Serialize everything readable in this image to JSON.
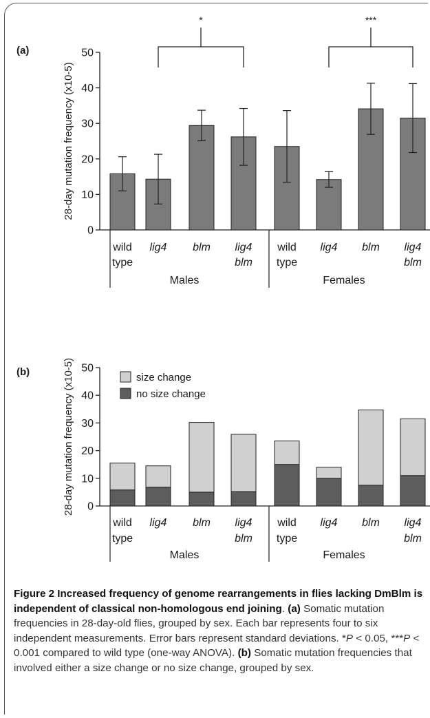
{
  "chart_data": [
    {
      "type": "bar",
      "panel_label": "(a)",
      "ylabel": "28-day mutation frequency (x10-5)",
      "ylim": [
        0,
        50
      ],
      "yticks": [
        0,
        10,
        20,
        30,
        40,
        50
      ],
      "categories": [
        {
          "line1": "wild",
          "line2": "type",
          "italic": false
        },
        {
          "line1": "lig4",
          "line2": "",
          "italic": true
        },
        {
          "line1": "blm",
          "line2": "",
          "italic": true
        },
        {
          "line1": "lig4",
          "line2": "blm",
          "italic": true
        },
        {
          "line1": "wild",
          "line2": "type",
          "italic": false
        },
        {
          "line1": "lig4",
          "line2": "",
          "italic": true
        },
        {
          "line1": "blm",
          "line2": "",
          "italic": true
        },
        {
          "line1": "lig4",
          "line2": "blm",
          "italic": true
        }
      ],
      "groups": [
        "Males",
        "Females"
      ],
      "values": [
        15.8,
        14.3,
        29.4,
        26.2,
        23.5,
        14.2,
        34.1,
        31.5
      ],
      "errors": [
        4.8,
        7.0,
        4.3,
        8.0,
        10.1,
        2.2,
        7.2,
        9.7
      ],
      "significance": [
        {
          "between": [
            1,
            3
          ],
          "label": "*"
        },
        {
          "between": [
            5,
            7
          ],
          "label": "***"
        }
      ],
      "color": "#7b7b7b"
    },
    {
      "type": "bar",
      "stacked": true,
      "panel_label": "(b)",
      "ylabel": "28-day mutation frequency (x10-5)",
      "ylim": [
        0,
        50
      ],
      "yticks": [
        0,
        10,
        20,
        30,
        40,
        50
      ],
      "groups": [
        "Males",
        "Females"
      ],
      "series": [
        {
          "name": "no size change",
          "color": "#5d5d5d",
          "values": [
            5.8,
            6.8,
            5.0,
            5.2,
            15.0,
            10.0,
            7.5,
            11.0
          ]
        },
        {
          "name": "size change",
          "color": "#d0d0d0",
          "values": [
            9.7,
            7.7,
            25.2,
            20.7,
            8.5,
            4.0,
            27.2,
            20.5
          ]
        }
      ],
      "legend": "top-left"
    }
  ],
  "caption": {
    "bold_title": "Figure 2 Increased frequency of genome rearrangements in flies lacking DmBlm is independent of classical non-homologous end joining",
    "part_a_label": "(a)",
    "part_a_text": " Somatic mutation frequencies in 28-day-old flies, grouped by sex. Each bar represents four to six independent measurements. Error bars represent standard deviations. *",
    "p1": "P",
    "t2": " < 0.05, ***",
    "p2": "P",
    "t3": " < 0.001 compared to wild type (one-way ANOVA). ",
    "part_b_label": "(b)",
    "part_b_text": " Somatic mutation frequencies that involved either a size change or no size change, grouped by sex."
  }
}
